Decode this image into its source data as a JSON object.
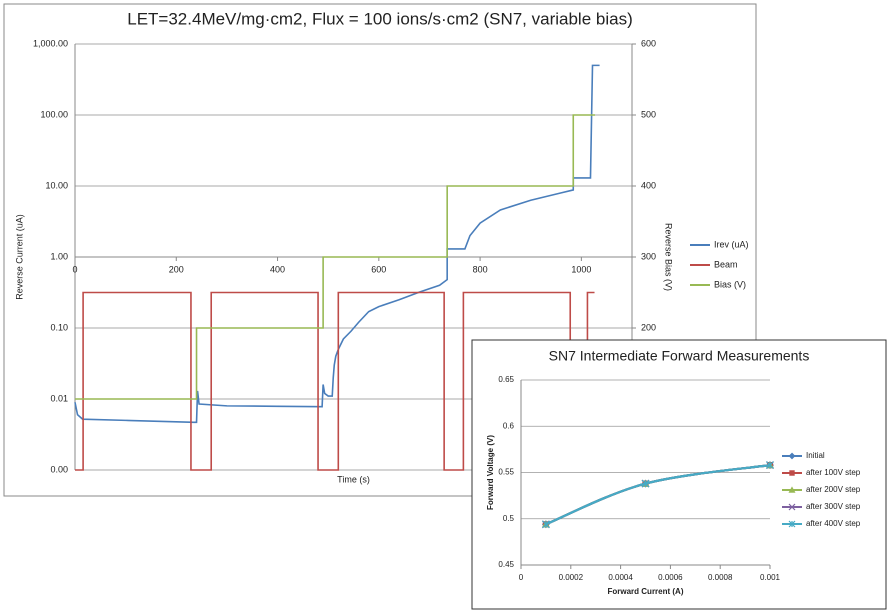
{
  "chart_data": [
    {
      "type": "line",
      "title": "LET=32.4MeV/mg·cm2, Flux = 100 ions/s·cm2 (SN7, variable bias)",
      "x_label": "Time (s)",
      "y_label": "Reverse Current (uA)",
      "y2_label": "Reverse Bias (V)",
      "xlim": [
        0,
        1100
      ],
      "xticks": [
        0,
        200,
        400,
        600,
        800,
        1000
      ],
      "ylim": [
        0.001,
        1000
      ],
      "y_log": true,
      "yticks": [
        {
          "value": 1000,
          "label": "1,000.00"
        },
        {
          "value": 100,
          "label": "100.00"
        },
        {
          "value": 10,
          "label": "10.00"
        },
        {
          "value": 1,
          "label": "1.00"
        },
        {
          "value": 0.1,
          "label": "0.10"
        },
        {
          "value": 0.01,
          "label": "0.01"
        },
        {
          "value": 0.001,
          "label": "0.00"
        }
      ],
      "y2lim": [
        0,
        600
      ],
      "y2ticks": [
        200,
        300,
        400,
        500,
        600
      ],
      "x_axis_crosses": 1,
      "grid": true,
      "legend": "right",
      "series": [
        {
          "name": "Irev (uA)",
          "color": "#4a7ebb",
          "x": [
            0,
            5,
            15,
            100,
            235,
            240,
            242,
            245,
            300,
            400,
            488,
            490,
            493,
            500,
            508,
            510,
            512,
            515,
            520,
            530,
            545,
            560,
            580,
            600,
            640,
            680,
            720,
            735,
            735,
            770,
            780,
            800,
            840,
            900,
            960,
            984,
            984,
            1018,
            1022,
            1036
          ],
          "values": [
            0.009,
            0.006,
            0.0052,
            0.005,
            0.0047,
            0.0047,
            0.013,
            0.0085,
            0.008,
            0.0079,
            0.0078,
            0.016,
            0.012,
            0.011,
            0.011,
            0.02,
            0.03,
            0.04,
            0.05,
            0.07,
            0.09,
            0.12,
            0.17,
            0.2,
            0.25,
            0.32,
            0.4,
            0.48,
            1.3,
            1.3,
            2,
            3,
            4.6,
            6.3,
            8,
            8.8,
            13,
            13,
            500,
            500
          ]
        },
        {
          "name": "Beam",
          "color": "#be4b48",
          "axis": "y2",
          "x": [
            0,
            16,
            16,
            229,
            229,
            269,
            269,
            480,
            480,
            520,
            520,
            729,
            729,
            767,
            767,
            978,
            978,
            1012,
            1012,
            1026
          ],
          "values": [
            0,
            0,
            250,
            250,
            0,
            0,
            250,
            250,
            0,
            0,
            250,
            250,
            0,
            0,
            250,
            250,
            0,
            0,
            250,
            250
          ]
        },
        {
          "name": "Bias (V)",
          "color": "#98b954",
          "axis": "y2",
          "x": [
            0,
            240,
            240,
            490,
            490,
            735,
            735,
            984,
            984,
            1027
          ],
          "values": [
            100,
            100,
            200,
            200,
            300,
            300,
            400,
            400,
            500,
            500
          ]
        }
      ]
    },
    {
      "type": "line",
      "title": "SN7 Intermediate Forward Measurements",
      "x_label": "Forward Current (A)",
      "y_label": "Forward Voltage (V)",
      "xlim": [
        0,
        0.001
      ],
      "xticks": [
        0,
        0.0002,
        0.0004,
        0.0006,
        0.0008,
        0.001
      ],
      "ylim": [
        0.45,
        0.65
      ],
      "yticks": [
        0.45,
        0.5,
        0.55,
        0.6,
        0.65
      ],
      "grid": true,
      "smooth": true,
      "legend": "right",
      "x": [
        0.0001,
        0.0005,
        0.001
      ],
      "series": [
        {
          "name": "Initial",
          "color": "#4a7ebb",
          "marker": "diamond",
          "values": [
            0.494,
            0.538,
            0.558
          ]
        },
        {
          "name": "after 100V step",
          "color": "#be4b48",
          "marker": "square",
          "values": [
            0.494,
            0.538,
            0.558
          ]
        },
        {
          "name": "after 200V step",
          "color": "#98b954",
          "marker": "triangle",
          "values": [
            0.494,
            0.538,
            0.558
          ]
        },
        {
          "name": "after 300V step",
          "color": "#7d60a0",
          "marker": "x",
          "values": [
            0.494,
            0.538,
            0.558
          ]
        },
        {
          "name": "after 400V step",
          "color": "#46aac5",
          "marker": "star",
          "values": [
            0.494,
            0.538,
            0.558
          ]
        }
      ]
    }
  ]
}
